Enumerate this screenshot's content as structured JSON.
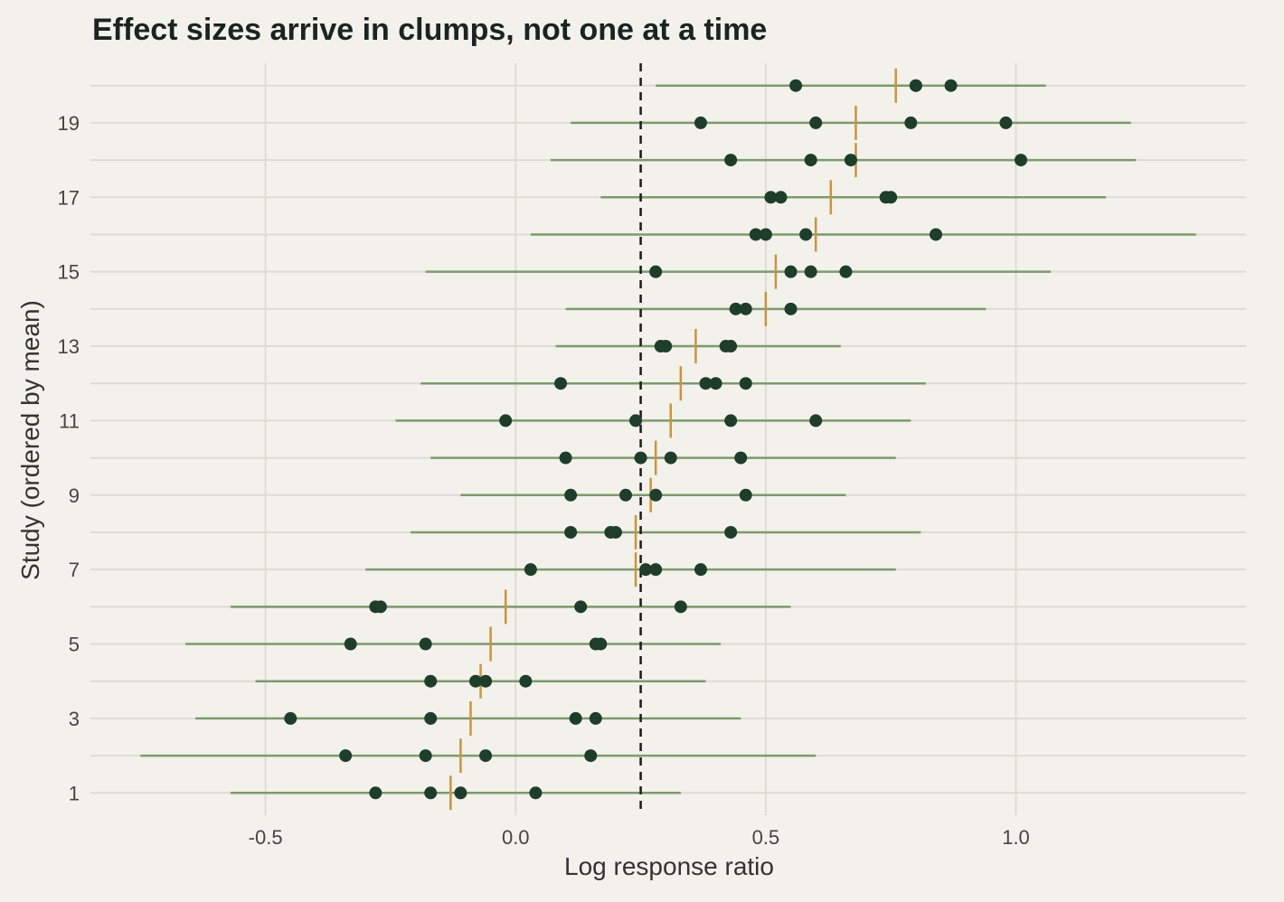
{
  "chart_data": {
    "type": "scatter",
    "title": "Effect sizes arrive in clumps, not one at a time",
    "xlabel": "Log response ratio",
    "ylabel": "Study (ordered by mean)",
    "xlim": [
      -0.85,
      1.46
    ],
    "ylim": [
      0.4,
      20.6
    ],
    "x_ticks": [
      -0.5,
      0.0,
      0.5,
      1.0
    ],
    "x_tick_labels": [
      "-0.5",
      "0.0",
      "0.5",
      "1.0"
    ],
    "y_ticks": [
      1,
      3,
      5,
      7,
      9,
      11,
      13,
      15,
      17,
      19
    ],
    "y_tick_labels": [
      "1",
      "3",
      "5",
      "7",
      "9",
      "11",
      "13",
      "15",
      "17",
      "19"
    ],
    "reference_line": 0.25,
    "grid": true,
    "colors": {
      "point": "#1f3d2b",
      "interval": "#7d9a6e",
      "mean": "#c9953a",
      "reference": "#1a1a1a",
      "background": "#f3f1eb",
      "grid": "#dcdcd4"
    },
    "studies": [
      {
        "study": 1,
        "mean": -0.13,
        "points": [
          -0.28,
          -0.17,
          -0.11,
          0.04
        ],
        "ci_low": -0.57,
        "ci_high": 0.33
      },
      {
        "study": 2,
        "mean": -0.11,
        "points": [
          -0.34,
          -0.18,
          -0.06,
          0.15
        ],
        "ci_low": -0.75,
        "ci_high": 0.6
      },
      {
        "study": 3,
        "mean": -0.09,
        "points": [
          -0.45,
          -0.17,
          0.12,
          0.16
        ],
        "ci_low": -0.64,
        "ci_high": 0.45
      },
      {
        "study": 4,
        "mean": -0.07,
        "points": [
          -0.17,
          -0.08,
          -0.06,
          0.02
        ],
        "ci_low": -0.52,
        "ci_high": 0.38
      },
      {
        "study": 5,
        "mean": -0.05,
        "points": [
          -0.33,
          -0.18,
          0.16,
          0.17
        ],
        "ci_low": -0.66,
        "ci_high": 0.41
      },
      {
        "study": 6,
        "mean": -0.02,
        "points": [
          -0.28,
          -0.27,
          0.13,
          0.33
        ],
        "ci_low": -0.57,
        "ci_high": 0.55
      },
      {
        "study": 7,
        "mean": 0.24,
        "points": [
          0.03,
          0.26,
          0.28,
          0.37
        ],
        "ci_low": -0.3,
        "ci_high": 0.76
      },
      {
        "study": 8,
        "mean": 0.24,
        "points": [
          0.11,
          0.19,
          0.2,
          0.43
        ],
        "ci_low": -0.21,
        "ci_high": 0.81
      },
      {
        "study": 9,
        "mean": 0.27,
        "points": [
          0.11,
          0.22,
          0.28,
          0.46
        ],
        "ci_low": -0.11,
        "ci_high": 0.66
      },
      {
        "study": 10,
        "mean": 0.28,
        "points": [
          0.1,
          0.25,
          0.31,
          0.45
        ],
        "ci_low": -0.17,
        "ci_high": 0.76
      },
      {
        "study": 11,
        "mean": 0.31,
        "points": [
          -0.02,
          0.24,
          0.43,
          0.6
        ],
        "ci_low": -0.24,
        "ci_high": 0.79
      },
      {
        "study": 12,
        "mean": 0.33,
        "points": [
          0.09,
          0.38,
          0.4,
          0.46
        ],
        "ci_low": -0.19,
        "ci_high": 0.82
      },
      {
        "study": 13,
        "mean": 0.36,
        "points": [
          0.29,
          0.3,
          0.42,
          0.43
        ],
        "ci_low": 0.08,
        "ci_high": 0.65
      },
      {
        "study": 14,
        "mean": 0.5,
        "points": [
          0.44,
          0.46,
          0.55
        ],
        "ci_low": 0.1,
        "ci_high": 0.94
      },
      {
        "study": 15,
        "mean": 0.52,
        "points": [
          0.28,
          0.55,
          0.59,
          0.66
        ],
        "ci_low": -0.18,
        "ci_high": 1.07
      },
      {
        "study": 16,
        "mean": 0.6,
        "points": [
          0.48,
          0.5,
          0.58,
          0.84
        ],
        "ci_low": 0.03,
        "ci_high": 1.36
      },
      {
        "study": 17,
        "mean": 0.63,
        "points": [
          0.51,
          0.53,
          0.74,
          0.75
        ],
        "ci_low": 0.17,
        "ci_high": 1.18
      },
      {
        "study": 18,
        "mean": 0.68,
        "points": [
          0.43,
          0.59,
          0.67,
          1.01
        ],
        "ci_low": 0.07,
        "ci_high": 1.24
      },
      {
        "study": 19,
        "mean": 0.68,
        "points": [
          0.37,
          0.6,
          0.79,
          0.98
        ],
        "ci_low": 0.11,
        "ci_high": 1.23
      },
      {
        "study": 20,
        "mean": 0.76,
        "points": [
          0.56,
          0.8,
          0.8,
          0.87
        ],
        "ci_low": 0.28,
        "ci_high": 1.06
      }
    ]
  }
}
